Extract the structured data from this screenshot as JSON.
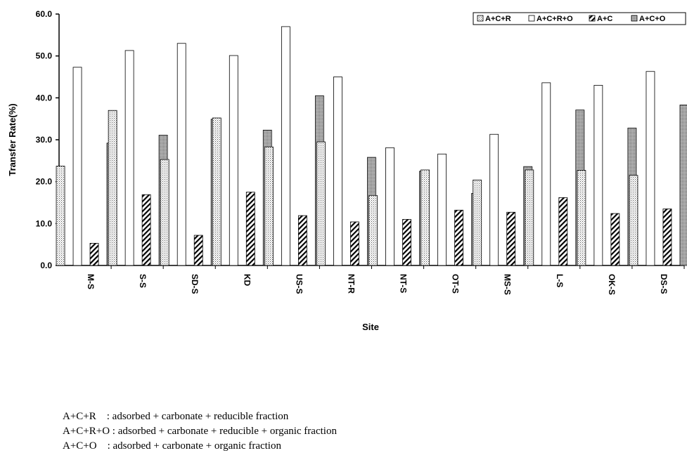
{
  "chart_data": {
    "type": "bar",
    "xlabel": "Site",
    "ylabel": "Transfer Rate(%)",
    "ylim": [
      0,
      60
    ],
    "yticks": [
      "0.0",
      "10.0",
      "20.0",
      "30.0",
      "40.0",
      "50.0",
      "60.0"
    ],
    "categories": [
      "M-S",
      "S-S",
      "SD-S",
      "KD",
      "US-S",
      "NT-R",
      "NT-S",
      "OT-S",
      "MS-S",
      "L-S",
      "OK-S",
      "DS-S"
    ],
    "legend_position": "top-right",
    "grid": false,
    "series": [
      {
        "name": "A+C+R",
        "pattern": "dotted",
        "values": [
          23.7,
          37.0,
          25.3,
          35.2,
          28.3,
          29.5,
          16.7,
          22.8,
          20.4,
          22.8,
          22.7,
          21.5
        ]
      },
      {
        "name": "A+C+R+O",
        "pattern": "white",
        "values": [
          47.3,
          51.3,
          53.0,
          50.1,
          57.0,
          45.0,
          28.1,
          26.6,
          31.3,
          43.6,
          43.0,
          46.3
        ]
      },
      {
        "name": "A+C",
        "pattern": "hatched",
        "values": [
          5.3,
          16.9,
          7.2,
          17.5,
          11.9,
          10.4,
          11.0,
          13.2,
          12.7,
          16.2,
          12.4,
          13.5
        ]
      },
      {
        "name": "A+C+O",
        "pattern": "dense-dotted",
        "values": [
          29.2,
          31.1,
          34.9,
          32.3,
          40.5,
          25.8,
          22.5,
          17.2,
          23.6,
          37.1,
          32.8,
          38.3
        ]
      }
    ]
  },
  "notes": [
    "A+C+R    : adsorbed + carbonate + reducible fraction",
    "A+C+R+O : adsorbed + carbonate + reducible + organic fraction",
    "A+C+O    : adsorbed + carbonate + organic fraction"
  ]
}
